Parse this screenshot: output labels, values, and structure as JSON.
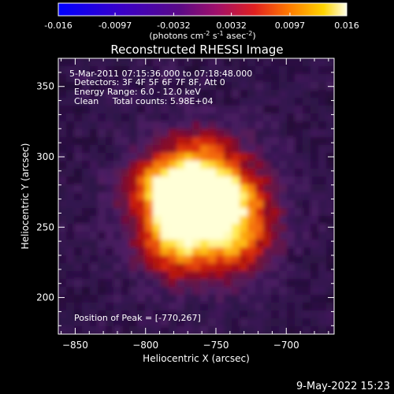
{
  "colorbar": {
    "ticks": [
      "-0.016",
      "-0.0097",
      "-0.0032",
      "0.0032",
      "0.0097",
      "0.016"
    ],
    "tick_values": [
      -0.016,
      -0.0097,
      -0.0032,
      0.0032,
      0.0097,
      0.016
    ],
    "range": [
      -0.016,
      0.016
    ],
    "unit_main": "(photons cm",
    "unit_exp1": "-2",
    "unit_mid": " s",
    "unit_exp2": "-1",
    "unit_mid2": " asec",
    "unit_exp3": "-2",
    "unit_end": ")"
  },
  "chart_data": {
    "type": "heatmap",
    "title": "Reconstructed RHESSI Image",
    "xlabel": "Heliocentric X (arcsec)",
    "ylabel": "Heliocentric Y (arcsec)",
    "xlim": [
      -862,
      -666
    ],
    "ylim": [
      174,
      370
    ],
    "xticks": [
      -850,
      -800,
      -750,
      -700
    ],
    "yticks": [
      200,
      250,
      300,
      350
    ],
    "annotations": [
      "5-Mar-2011 07:15:36.000 to 07:18:48.000",
      "Detectors: 3F 4F 5F 6F 7F 8F, Att 0",
      "Energy Range: 6.0 - 12.0 keV",
      "Clean     Total counts: 5.98E+04"
    ],
    "peak_label": "Position of Peak = [-770,267]",
    "peak": [
      -770,
      267
    ],
    "colormap": "blue-purple-red-yellow-white",
    "grid": false
  },
  "footer": {
    "timestamp": "9-May-2022 15:23"
  }
}
